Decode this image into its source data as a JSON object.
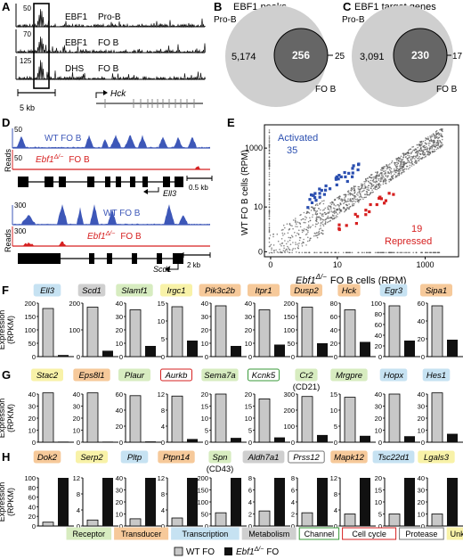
{
  "panelA": {
    "letter": "A",
    "tracks": [
      {
        "scale": "50",
        "label1": "EBF1",
        "label2": "Pro-B"
      },
      {
        "scale": "70",
        "label1": "EBF1",
        "label2": "FO B"
      },
      {
        "scale": "125",
        "label1": "DHS",
        "label2": "FO B"
      }
    ],
    "scalebar": "5 kb",
    "gene": "Hck"
  },
  "panelB": {
    "letter": "B",
    "title": "EBF1 peaks",
    "big_label": "Pro-B",
    "small_label": "FO B",
    "only_big": "5,174",
    "overlap": "256",
    "only_small": "25"
  },
  "panelC": {
    "letter": "C",
    "title": "EBF1 target genes",
    "big_label": "Pro-B",
    "small_label": "FO B",
    "only_big": "3,091",
    "overlap": "230",
    "only_small": "17"
  },
  "panelD": {
    "letter": "D",
    "ylabel": "Reads",
    "block1": {
      "wt_scale": "50",
      "ko_scale": "50",
      "wt_label": "WT  FO B",
      "ko_gene": "Ebf1",
      "ko_sup": "Δ/−",
      "ko_suffix": "FO B",
      "gene": "Ell3",
      "scalebar": "0.5 kb"
    },
    "block2": {
      "wt_scale": "300",
      "ko_scale": "300",
      "wt_label": "WT  FO B",
      "ko_gene": "Ebf1",
      "ko_sup": "Δ/−",
      "ko_suffix": "FO B",
      "gene": "Scd1",
      "scalebar": "2 kb"
    }
  },
  "panelE": {
    "letter": "E",
    "activated_label": "Activated",
    "activated_count": "35",
    "repressed_count": "19",
    "repressed_label": "Repressed",
    "ylabel": "WT FO B cells (RPM)",
    "xlabel_gene": "Ebf1",
    "xlabel_sup": "Δ/−",
    "xlabel_rest": "FO B cells (RPM)",
    "ticks": [
      "0",
      "10",
      "1000"
    ],
    "colors": {
      "activated": "#2b4fb0",
      "repressed": "#d62020",
      "points": "#555555"
    }
  },
  "panelF": {
    "letter": "F",
    "ylabel": "Expression (RPKM)",
    "genes": [
      {
        "name": "Ell3",
        "cat": "transcription",
        "wt": 180,
        "ko": 6,
        "ymax": 200,
        "ticks": [
          "0",
          "50",
          "100",
          "150",
          "200"
        ]
      },
      {
        "name": "Scd1",
        "cat": "metabolism",
        "wt": 185,
        "ko": 22,
        "ymax": 200,
        "ticks": [
          "0",
          "100",
          "200"
        ]
      },
      {
        "name": "Slamf1",
        "cat": "receptor",
        "wt": 35,
        "ko": 8,
        "ymax": 40,
        "ticks": [
          "0",
          "10",
          "20",
          "30",
          "40"
        ]
      },
      {
        "name": "Irgc1",
        "cat": "unknown",
        "wt": 14,
        "ko": 4.5,
        "ymax": 15,
        "ticks": [
          "0",
          "5",
          "10",
          "15"
        ]
      },
      {
        "name": "Pik3c2b",
        "cat": "transducer",
        "wt": 38,
        "ko": 8,
        "ymax": 40,
        "ticks": [
          "0",
          "10",
          "20",
          "30",
          "40"
        ]
      },
      {
        "name": "Itpr1",
        "cat": "transducer",
        "wt": 35,
        "ko": 9,
        "ymax": 40,
        "ticks": [
          "0",
          "10",
          "20",
          "30",
          "40"
        ]
      },
      {
        "name": "Dusp2",
        "cat": "transducer",
        "wt": 185,
        "ko": 50,
        "ymax": 200,
        "ticks": [
          "0",
          "50",
          "100",
          "150",
          "200"
        ]
      },
      {
        "name": "Hck",
        "cat": "transducer",
        "wt": 70,
        "ko": 22,
        "ymax": 80,
        "ticks": [
          "0",
          "20",
          "40",
          "60",
          "80"
        ]
      },
      {
        "name": "Egr3",
        "cat": "transcription",
        "wt": 95,
        "ko": 30,
        "ymax": 100,
        "ticks": [
          "0",
          "20",
          "40",
          "60",
          "80",
          "100"
        ]
      },
      {
        "name": "Sipa1",
        "cat": "transducer",
        "wt": 57,
        "ko": 19,
        "ymax": 60,
        "ticks": [
          "0",
          "20",
          "40",
          "60"
        ]
      }
    ]
  },
  "panelG": {
    "letter": "G",
    "ylabel": "Expression (RPKM)",
    "genes": [
      {
        "name": "Stac2",
        "cat": "unknown",
        "wt": 41,
        "ko": 0.5,
        "ymax": 40,
        "ticks": [
          "0",
          "10",
          "20",
          "30",
          "40"
        ]
      },
      {
        "name": "Eps8l1",
        "cat": "transducer",
        "wt": 41,
        "ko": 0.5,
        "ymax": 40,
        "ticks": [
          "0",
          "10",
          "20",
          "30",
          "40"
        ]
      },
      {
        "name": "Plaur",
        "cat": "receptor",
        "wt": 58,
        "ko": 1,
        "ymax": 60,
        "ticks": [
          "0",
          "20",
          "40",
          "60"
        ]
      },
      {
        "name": "Aurkb",
        "cat": "cellcycle",
        "wt": 11.5,
        "ko": 0.8,
        "ymax": 12,
        "ticks": [
          "0",
          "4",
          "8",
          "12"
        ]
      },
      {
        "name": "Sema7a",
        "cat": "receptor",
        "wt": 20,
        "ko": 1.8,
        "ymax": 20,
        "ticks": [
          "0",
          "5",
          "10",
          "15",
          "20"
        ]
      },
      {
        "name": "Kcnk5",
        "cat": "channel",
        "wt": 18,
        "ko": 2,
        "ymax": 20,
        "ticks": [
          "0",
          "5",
          "10",
          "15",
          "20"
        ]
      },
      {
        "name": "Cr2",
        "sub": "(CD21)",
        "cat": "receptor",
        "wt": 285,
        "ko": 45,
        "ymax": 300,
        "ticks": [
          "0",
          "100",
          "200",
          "300"
        ]
      },
      {
        "name": "Mrgpre",
        "cat": "receptor",
        "wt": 14,
        "ko": 2,
        "ymax": 15,
        "ticks": [
          "0",
          "5",
          "10",
          "15"
        ]
      },
      {
        "name": "Hopx",
        "cat": "transcription",
        "wt": 40,
        "ko": 5,
        "ymax": 40,
        "ticks": [
          "0",
          "10",
          "20",
          "30",
          "40"
        ]
      },
      {
        "name": "Hes1",
        "cat": "transcription",
        "wt": 41,
        "ko": 7,
        "ymax": 40,
        "ticks": [
          "0",
          "10",
          "20",
          "30",
          "40"
        ]
      }
    ]
  },
  "panelH": {
    "letter": "H",
    "ylabel": "Expression (RPKM)",
    "genes": [
      {
        "name": "Dok2",
        "cat": "transducer",
        "wt": 8,
        "ko": 100,
        "ymax": 100,
        "ticks": [
          "0",
          "20",
          "40",
          "60",
          "80",
          "100"
        ]
      },
      {
        "name": "Serp2",
        "cat": "unknown",
        "wt": 1.5,
        "ko": 12,
        "ymax": 12,
        "ticks": [
          "0",
          "4",
          "8",
          "12"
        ]
      },
      {
        "name": "Pltp",
        "cat": "transcription",
        "wt": 6,
        "ko": 40,
        "ymax": 40,
        "ticks": [
          "0",
          "10",
          "20",
          "30",
          "40"
        ]
      },
      {
        "name": "Ptpn14",
        "cat": "transducer",
        "wt": 2,
        "ko": 12,
        "ymax": 12,
        "ticks": [
          "0",
          "4",
          "8",
          "12"
        ]
      },
      {
        "name": "Spn",
        "sub": "(CD43)",
        "cat": "receptor",
        "wt": 55,
        "ko": 200,
        "ymax": 200,
        "ticks": [
          "0",
          "50",
          "100",
          "150",
          "200"
        ]
      },
      {
        "name": "Aldh7a1",
        "cat": "metabolism",
        "wt": 2.5,
        "ko": 8,
        "ymax": 8,
        "ticks": [
          "0",
          "2",
          "4",
          "6",
          "8"
        ]
      },
      {
        "name": "Prss12",
        "cat": "protease",
        "wt": 2.2,
        "ko": 8,
        "ymax": 8,
        "ticks": [
          "0",
          "2",
          "4",
          "6",
          "8"
        ]
      },
      {
        "name": "Mapk12",
        "cat": "transducer",
        "wt": 3,
        "ko": 12,
        "ymax": 12,
        "ticks": [
          "0",
          "4",
          "8",
          "12"
        ]
      },
      {
        "name": "Tsc22d1",
        "cat": "transcription",
        "wt": 5,
        "ko": 20,
        "ymax": 20,
        "ticks": [
          "0",
          "5",
          "10",
          "15",
          "20"
        ]
      },
      {
        "name": "Lgals3",
        "cat": "unknown",
        "wt": 10,
        "ko": 40,
        "ymax": 40,
        "ticks": [
          "0",
          "10",
          "20",
          "30",
          "40"
        ]
      }
    ]
  },
  "categories": {
    "receptor": {
      "label": "Receptor",
      "fill": "#d7ecc0",
      "stroke": "#d7ecc0"
    },
    "transducer": {
      "label": "Transducer",
      "fill": "#f6c99a",
      "stroke": "#f6c99a"
    },
    "transcription": {
      "label": "Transcription",
      "fill": "#c6e2f2",
      "stroke": "#c6e2f2"
    },
    "metabolism": {
      "label": "Metabolism",
      "fill": "#cfcfcf",
      "stroke": "#cfcfcf"
    },
    "channel": {
      "label": "Channel",
      "fill": "#ffffff",
      "stroke": "#3a9a3a"
    },
    "cellcycle": {
      "label": "Cell cycle",
      "fill": "#ffffff",
      "stroke": "#d62020"
    },
    "protease": {
      "label": "Protease",
      "fill": "#ffffff",
      "stroke": "#777777"
    },
    "unknown": {
      "label": "Unknown",
      "fill": "#f8f2a8",
      "stroke": "#f8f2a8"
    }
  },
  "category_order": [
    "receptor",
    "transducer",
    "transcription",
    "metabolism",
    "channel",
    "cellcycle",
    "protease",
    "unknown"
  ],
  "bar_legend": {
    "wt": "WT FO",
    "ko_gene": "Ebf1",
    "ko_sup": "Δ/−",
    "ko_suffix": "FO"
  },
  "colors": {
    "wt_bar": "#c8c8c8",
    "ko_bar": "#111111",
    "track_blue": "#3d57b8",
    "track_red": "#d62020"
  }
}
